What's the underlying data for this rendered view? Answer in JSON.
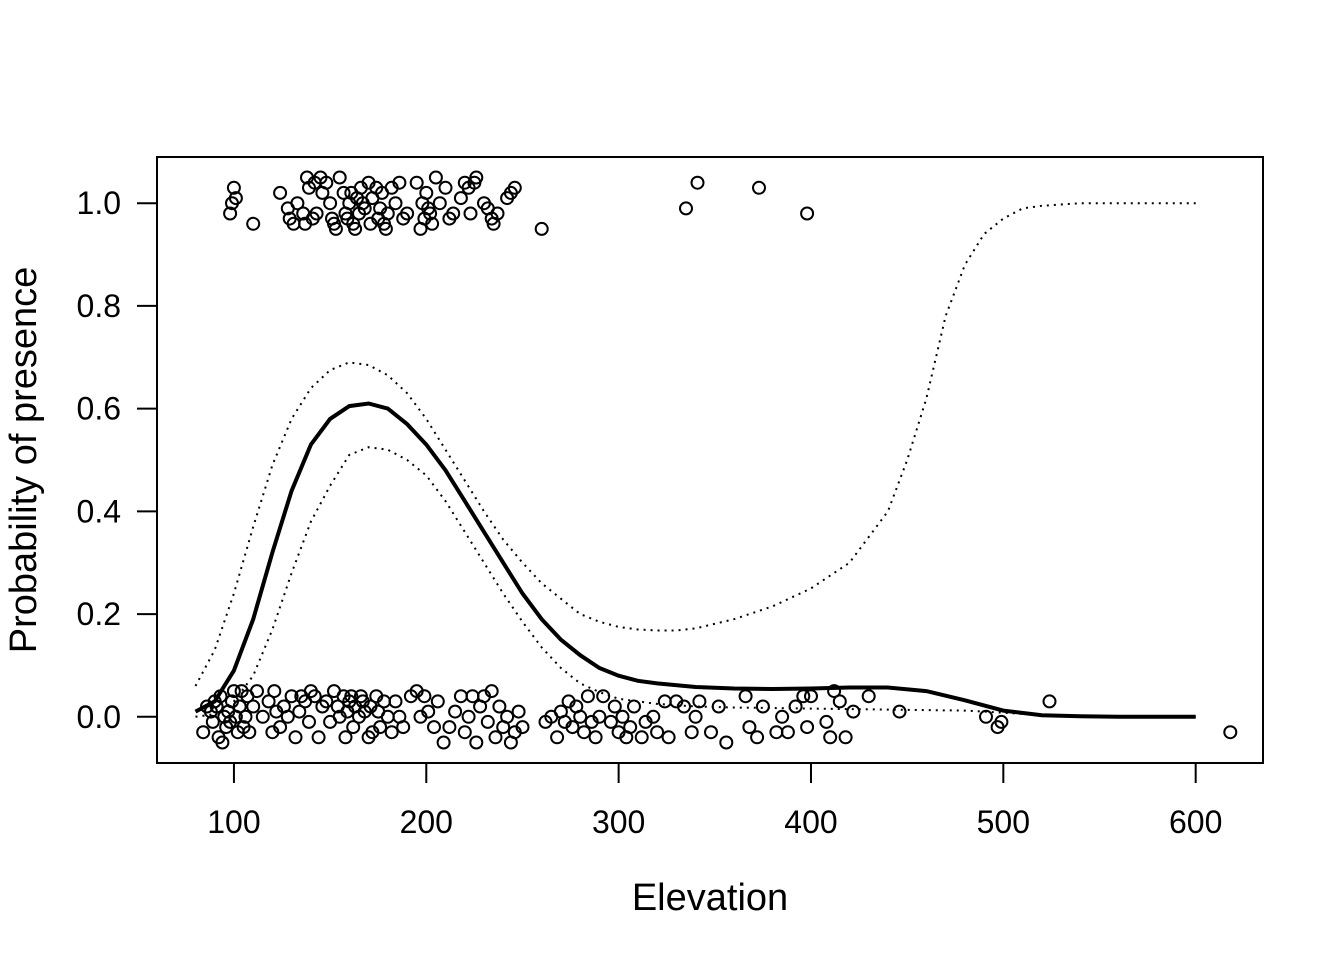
{
  "chart_data": {
    "type": "scatter",
    "title": "",
    "xlabel": "Elevation",
    "ylabel": "Probability of presence",
    "xlim": [
      60,
      635
    ],
    "ylim": [
      -0.09,
      1.09
    ],
    "xticks": [
      100,
      200,
      300,
      400,
      500,
      600
    ],
    "yticks": [
      0.0,
      0.2,
      0.4,
      0.6,
      0.8,
      1.0
    ],
    "xtick_labels": [
      "100",
      "200",
      "300",
      "400",
      "500",
      "600"
    ],
    "ytick_labels": [
      "0.0",
      "0.2",
      "0.4",
      "0.6",
      "0.8",
      "1.0"
    ],
    "grid": false,
    "legend": "none",
    "points": [
      [
        100,
        1.03
      ],
      [
        99,
        1.0
      ],
      [
        98,
        0.98
      ],
      [
        101,
        1.01
      ],
      [
        110,
        0.96
      ],
      [
        124,
        1.02
      ],
      [
        128,
        0.99
      ],
      [
        129,
        0.97
      ],
      [
        131,
        0.96
      ],
      [
        133,
        1.0
      ],
      [
        136,
        0.98
      ],
      [
        137,
        0.96
      ],
      [
        138,
        1.05
      ],
      [
        139,
        1.03
      ],
      [
        141,
        0.97
      ],
      [
        142,
        1.04
      ],
      [
        143,
        0.98
      ],
      [
        145,
        1.05
      ],
      [
        146,
        1.02
      ],
      [
        148,
        1.04
      ],
      [
        150,
        1.0
      ],
      [
        151,
        0.97
      ],
      [
        152,
        0.96
      ],
      [
        153,
        0.95
      ],
      [
        155,
        1.05
      ],
      [
        157,
        1.02
      ],
      [
        158,
        0.98
      ],
      [
        159,
        0.97
      ],
      [
        160,
        1.0
      ],
      [
        161,
        1.02
      ],
      [
        162,
        0.96
      ],
      [
        163,
        0.95
      ],
      [
        164,
        1.01
      ],
      [
        165,
        0.98
      ],
      [
        166,
        1.03
      ],
      [
        167,
        1.0
      ],
      [
        168,
        0.99
      ],
      [
        170,
        1.04
      ],
      [
        171,
        0.96
      ],
      [
        172,
        1.01
      ],
      [
        174,
        1.03
      ],
      [
        175,
        0.97
      ],
      [
        176,
        0.99
      ],
      [
        177,
        1.02
      ],
      [
        178,
        0.96
      ],
      [
        179,
        0.95
      ],
      [
        180,
        0.98
      ],
      [
        182,
        1.03
      ],
      [
        184,
        1.0
      ],
      [
        186,
        1.04
      ],
      [
        188,
        0.97
      ],
      [
        190,
        0.98
      ],
      [
        195,
        1.04
      ],
      [
        197,
        0.95
      ],
      [
        198,
        1.0
      ],
      [
        199,
        0.97
      ],
      [
        200,
        1.02
      ],
      [
        201,
        0.99
      ],
      [
        202,
        0.98
      ],
      [
        203,
        0.96
      ],
      [
        205,
        1.05
      ],
      [
        207,
        1.0
      ],
      [
        210,
        1.03
      ],
      [
        212,
        0.97
      ],
      [
        214,
        0.98
      ],
      [
        218,
        1.01
      ],
      [
        220,
        1.04
      ],
      [
        222,
        1.03
      ],
      [
        223,
        0.98
      ],
      [
        225,
        1.04
      ],
      [
        226,
        1.05
      ],
      [
        230,
        1.0
      ],
      [
        232,
        0.99
      ],
      [
        234,
        0.97
      ],
      [
        235,
        0.96
      ],
      [
        237,
        0.98
      ],
      [
        242,
        1.01
      ],
      [
        244,
        1.02
      ],
      [
        246,
        1.03
      ],
      [
        260,
        0.95
      ],
      [
        335,
        0.99
      ],
      [
        341,
        1.04
      ],
      [
        373,
        1.03
      ],
      [
        398,
        0.98
      ],
      [
        84,
        -0.03
      ],
      [
        86,
        0.02
      ],
      [
        88,
        0.01
      ],
      [
        89,
        -0.01
      ],
      [
        90,
        0.03
      ],
      [
        91,
        0.02
      ],
      [
        92,
        -0.04
      ],
      [
        93,
        0.04
      ],
      [
        94,
        -0.05
      ],
      [
        95,
        0.0
      ],
      [
        96,
        -0.02
      ],
      [
        97,
        0.01
      ],
      [
        98,
        -0.01
      ],
      [
        99,
        0.03
      ],
      [
        100,
        0.05
      ],
      [
        101,
        0.0
      ],
      [
        102,
        -0.03
      ],
      [
        103,
        0.02
      ],
      [
        104,
        0.05
      ],
      [
        105,
        -0.02
      ],
      [
        106,
        0.0
      ],
      [
        107,
        0.04
      ],
      [
        108,
        -0.03
      ],
      [
        110,
        0.02
      ],
      [
        112,
        0.05
      ],
      [
        115,
        0.0
      ],
      [
        118,
        0.03
      ],
      [
        120,
        -0.03
      ],
      [
        121,
        0.05
      ],
      [
        122,
        0.01
      ],
      [
        124,
        -0.02
      ],
      [
        126,
        0.02
      ],
      [
        128,
        0.0
      ],
      [
        130,
        0.04
      ],
      [
        132,
        -0.04
      ],
      [
        134,
        0.01
      ],
      [
        135,
        0.04
      ],
      [
        137,
        0.03
      ],
      [
        139,
        -0.01
      ],
      [
        140,
        0.05
      ],
      [
        142,
        0.04
      ],
      [
        144,
        -0.04
      ],
      [
        146,
        0.02
      ],
      [
        148,
        0.03
      ],
      [
        150,
        -0.01
      ],
      [
        152,
        0.05
      ],
      [
        154,
        0.02
      ],
      [
        155,
        0.0
      ],
      [
        157,
        0.04
      ],
      [
        158,
        -0.04
      ],
      [
        159,
        0.01
      ],
      [
        160,
        0.03
      ],
      [
        161,
        0.04
      ],
      [
        162,
        -0.02
      ],
      [
        163,
        0.02
      ],
      [
        165,
        0.0
      ],
      [
        166,
        0.04
      ],
      [
        167,
        0.03
      ],
      [
        168,
        0.01
      ],
      [
        170,
        -0.04
      ],
      [
        171,
        0.02
      ],
      [
        172,
        -0.03
      ],
      [
        174,
        0.04
      ],
      [
        175,
        0.01
      ],
      [
        176,
        -0.02
      ],
      [
        178,
        0.03
      ],
      [
        180,
        0.0
      ],
      [
        182,
        -0.03
      ],
      [
        184,
        0.03
      ],
      [
        186,
        0.0
      ],
      [
        188,
        -0.02
      ],
      [
        192,
        0.04
      ],
      [
        195,
        0.05
      ],
      [
        197,
        0.0
      ],
      [
        199,
        0.04
      ],
      [
        201,
        0.01
      ],
      [
        204,
        -0.02
      ],
      [
        206,
        0.03
      ],
      [
        209,
        -0.05
      ],
      [
        212,
        -0.02
      ],
      [
        215,
        0.01
      ],
      [
        218,
        0.04
      ],
      [
        220,
        -0.03
      ],
      [
        222,
        0.0
      ],
      [
        224,
        0.04
      ],
      [
        226,
        -0.05
      ],
      [
        228,
        0.02
      ],
      [
        230,
        0.04
      ],
      [
        232,
        -0.01
      ],
      [
        234,
        0.05
      ],
      [
        236,
        -0.04
      ],
      [
        238,
        0.02
      ],
      [
        240,
        -0.02
      ],
      [
        242,
        0.0
      ],
      [
        244,
        -0.05
      ],
      [
        246,
        -0.03
      ],
      [
        248,
        0.01
      ],
      [
        250,
        -0.02
      ],
      [
        262,
        -0.01
      ],
      [
        265,
        0.0
      ],
      [
        268,
        -0.04
      ],
      [
        270,
        0.01
      ],
      [
        272,
        -0.01
      ],
      [
        274,
        0.03
      ],
      [
        276,
        -0.02
      ],
      [
        278,
        0.02
      ],
      [
        280,
        0.0
      ],
      [
        282,
        -0.03
      ],
      [
        284,
        0.04
      ],
      [
        286,
        -0.01
      ],
      [
        288,
        -0.04
      ],
      [
        290,
        0.0
      ],
      [
        292,
        0.04
      ],
      [
        296,
        -0.01
      ],
      [
        298,
        0.02
      ],
      [
        300,
        -0.03
      ],
      [
        302,
        0.0
      ],
      [
        304,
        -0.04
      ],
      [
        306,
        -0.02
      ],
      [
        308,
        0.02
      ],
      [
        312,
        -0.04
      ],
      [
        314,
        -0.01
      ],
      [
        318,
        0.0
      ],
      [
        320,
        -0.03
      ],
      [
        324,
        0.03
      ],
      [
        326,
        -0.04
      ],
      [
        330,
        0.03
      ],
      [
        334,
        0.02
      ],
      [
        338,
        -0.03
      ],
      [
        340,
        0.0
      ],
      [
        342,
        0.03
      ],
      [
        348,
        -0.03
      ],
      [
        352,
        0.02
      ],
      [
        356,
        -0.05
      ],
      [
        366,
        0.04
      ],
      [
        368,
        -0.02
      ],
      [
        372,
        -0.04
      ],
      [
        375,
        0.02
      ],
      [
        382,
        -0.03
      ],
      [
        385,
        0.0
      ],
      [
        388,
        -0.03
      ],
      [
        392,
        0.02
      ],
      [
        396,
        0.04
      ],
      [
        398,
        -0.02
      ],
      [
        400,
        0.04
      ],
      [
        408,
        -0.01
      ],
      [
        410,
        -0.04
      ],
      [
        412,
        0.05
      ],
      [
        415,
        0.03
      ],
      [
        418,
        -0.04
      ],
      [
        422,
        0.01
      ],
      [
        430,
        0.04
      ],
      [
        446,
        0.01
      ],
      [
        491,
        0.0
      ],
      [
        497,
        -0.02
      ],
      [
        499,
        -0.01
      ],
      [
        524,
        0.03
      ],
      [
        618,
        -0.03
      ]
    ],
    "fit_line": {
      "x": [
        80,
        90,
        100,
        110,
        120,
        130,
        140,
        150,
        160,
        170,
        180,
        190,
        200,
        210,
        220,
        230,
        240,
        250,
        260,
        270,
        280,
        290,
        300,
        310,
        320,
        340,
        360,
        380,
        400,
        420,
        440,
        460,
        480,
        500,
        520,
        540,
        560,
        580,
        600
      ],
      "y": [
        0.01,
        0.03,
        0.09,
        0.19,
        0.32,
        0.44,
        0.53,
        0.58,
        0.605,
        0.61,
        0.6,
        0.57,
        0.53,
        0.48,
        0.42,
        0.36,
        0.3,
        0.24,
        0.19,
        0.15,
        0.12,
        0.095,
        0.08,
        0.07,
        0.065,
        0.058,
        0.055,
        0.054,
        0.055,
        0.057,
        0.057,
        0.05,
        0.032,
        0.012,
        0.003,
        0.001,
        0.0,
        0.0,
        0.0
      ]
    },
    "ci_upper": {
      "x": [
        80,
        90,
        100,
        110,
        120,
        130,
        140,
        150,
        160,
        170,
        180,
        190,
        200,
        210,
        220,
        230,
        240,
        250,
        260,
        270,
        280,
        290,
        300,
        310,
        320,
        330,
        340,
        360,
        380,
        400,
        420,
        440,
        450,
        460,
        470,
        480,
        490,
        500,
        510,
        520,
        540,
        560,
        580,
        600
      ],
      "y": [
        0.06,
        0.13,
        0.24,
        0.37,
        0.49,
        0.58,
        0.64,
        0.675,
        0.69,
        0.685,
        0.665,
        0.63,
        0.58,
        0.52,
        0.46,
        0.4,
        0.345,
        0.3,
        0.26,
        0.23,
        0.2,
        0.185,
        0.175,
        0.17,
        0.168,
        0.168,
        0.172,
        0.19,
        0.215,
        0.25,
        0.3,
        0.4,
        0.5,
        0.62,
        0.78,
        0.88,
        0.94,
        0.97,
        0.99,
        0.995,
        1.0,
        1.0,
        1.0,
        1.0
      ]
    },
    "ci_lower": {
      "x": [
        80,
        90,
        100,
        110,
        120,
        130,
        140,
        150,
        160,
        170,
        180,
        190,
        200,
        210,
        220,
        230,
        240,
        250,
        260,
        270,
        280,
        290,
        300,
        320,
        340,
        360,
        380,
        400,
        420,
        440,
        460,
        480,
        500,
        520,
        540,
        560,
        580,
        600
      ],
      "y": [
        0.0,
        0.005,
        0.03,
        0.08,
        0.17,
        0.28,
        0.38,
        0.45,
        0.51,
        0.525,
        0.52,
        0.5,
        0.47,
        0.42,
        0.36,
        0.3,
        0.24,
        0.185,
        0.135,
        0.095,
        0.065,
        0.048,
        0.035,
        0.025,
        0.02,
        0.018,
        0.017,
        0.016,
        0.015,
        0.014,
        0.013,
        0.012,
        0.008,
        0.003,
        0.001,
        0.0,
        0.0,
        0.0
      ]
    }
  }
}
